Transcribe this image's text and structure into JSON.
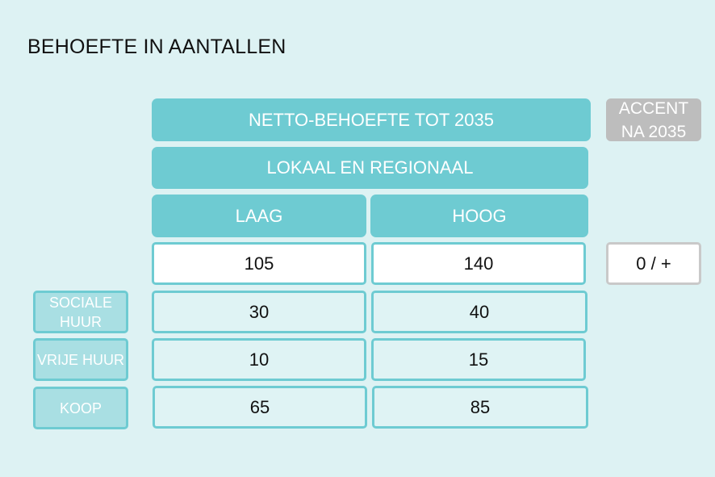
{
  "title": "BEHOEFTE IN AANTALLEN",
  "header": {
    "netto": "NETTO-BEHOEFTE TOT 2035",
    "lokaal": "LOKAAL EN REGIONAAL",
    "laag": "LAAG",
    "hoog": "HOOG",
    "accent": "ACCENT NA 2035"
  },
  "totals": {
    "laag": "105",
    "hoog": "140",
    "accent": "0 / +"
  },
  "rows": [
    {
      "label": "SOCIALE HUUR",
      "laag": "30",
      "hoog": "40"
    },
    {
      "label": "VRIJE HUUR",
      "laag": "10",
      "hoog": "15"
    },
    {
      "label": "KOOP",
      "laag": "65",
      "hoog": "85"
    }
  ],
  "colors": {
    "accent_teal": "#6ecbd2",
    "background": "#ddf2f3",
    "grey": "#bdbdbd"
  }
}
